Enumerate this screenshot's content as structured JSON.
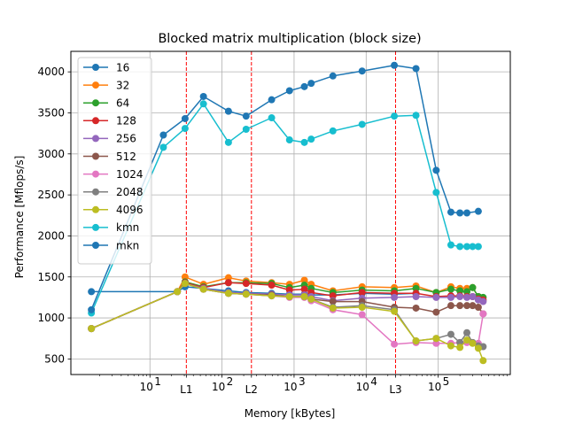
{
  "chart_data": {
    "type": "line",
    "title": "Blocked matrix multiplication (block size)",
    "xlabel": "Memory [kBytes]",
    "ylabel": "Performance [Mflops/s]",
    "xscale": "log",
    "xlim": [
      0.8,
      1000000
    ],
    "ylim": [
      310,
      4250
    ],
    "grid": true,
    "legend_position": "top-left",
    "y_ticks": [
      500,
      1000,
      1500,
      2000,
      2500,
      3000,
      3500,
      4000
    ],
    "x_ticks": [
      {
        "value": 10,
        "label": "10",
        "sup": "1"
      },
      {
        "value": 100,
        "label": "10",
        "sup": "2"
      },
      {
        "value": 1000,
        "label": "10",
        "sup": "3"
      },
      {
        "value": 10000,
        "label": "10",
        "sup": "4"
      },
      {
        "value": 100000,
        "label": "10",
        "sup": "5"
      }
    ],
    "cache_lines": [
      {
        "label": "L1",
        "value": 32
      },
      {
        "label": "L2",
        "value": 256
      },
      {
        "label": "L3",
        "value": 25600
      }
    ],
    "series": [
      {
        "name": "16",
        "color": "#1f77b4",
        "x": [
          1.54,
          24,
          30.72,
          55.3,
          122.9,
          216,
          488,
          864,
          1389,
          1728,
          3456,
          8784,
          24576,
          49152
        ],
        "y": [
          1320,
          1320,
          1380,
          1360,
          1330,
          1310,
          1300,
          1290,
          1290,
          1280,
          1280,
          1300,
          1290,
          1300
        ]
      },
      {
        "name": "32",
        "color": "#ff7f0e",
        "x": [
          1.54,
          24,
          30.72,
          55.3,
          122.9,
          216,
          488,
          864,
          1389,
          1728,
          3456,
          8784,
          24576,
          49152,
          93750,
          150000,
          200000,
          250000,
          300000,
          360000
        ],
        "y": [
          870,
          1320,
          1500,
          1410,
          1490,
          1450,
          1430,
          1410,
          1460,
          1410,
          1330,
          1380,
          1370,
          1390,
          1310,
          1380,
          1360,
          1360,
          1370,
          1260
        ]
      },
      {
        "name": "64",
        "color": "#2ca02c",
        "x": [
          1.54,
          24,
          30.72,
          55.3,
          122.9,
          216,
          488,
          864,
          1389,
          1728,
          3456,
          8784,
          24576,
          49152,
          93750,
          150000,
          200000,
          250000,
          300000,
          360000,
          420000
        ],
        "y": [
          870,
          1320,
          1440,
          1380,
          1430,
          1430,
          1420,
          1370,
          1400,
          1360,
          1310,
          1340,
          1330,
          1360,
          1310,
          1350,
          1330,
          1320,
          1370,
          1260,
          1250
        ]
      },
      {
        "name": "128",
        "color": "#d62728",
        "x": [
          1.54,
          24,
          30.72,
          55.3,
          122.9,
          216,
          488,
          864,
          1389,
          1728,
          3456,
          8784,
          24576,
          49152,
          93750,
          150000,
          200000,
          250000,
          300000,
          360000,
          420000
        ],
        "y": [
          870,
          1320,
          1430,
          1370,
          1430,
          1420,
          1400,
          1340,
          1350,
          1310,
          1270,
          1310,
          1300,
          1300,
          1260,
          1270,
          1270,
          1260,
          1260,
          1230,
          1220
        ]
      },
      {
        "name": "256",
        "color": "#9467bd",
        "x": [
          1.54,
          24,
          30.72,
          55.3,
          122.9,
          216,
          488,
          864,
          1389,
          1728,
          3456,
          8784,
          24576,
          49152,
          93750,
          150000,
          200000,
          250000,
          300000,
          360000,
          420000
        ],
        "y": [
          870,
          1320,
          1420,
          1360,
          1310,
          1300,
          1290,
          1280,
          1280,
          1260,
          1210,
          1240,
          1250,
          1260,
          1250,
          1250,
          1260,
          1250,
          1260,
          1220,
          1200
        ]
      },
      {
        "name": "512",
        "color": "#8c564b",
        "x": [
          1.54,
          24,
          30.72,
          55.3,
          122.9,
          216,
          488,
          864,
          1389,
          1728,
          3456,
          8784,
          24576,
          49152,
          93750,
          150000,
          200000,
          250000,
          300000,
          360000,
          420000
        ],
        "y": [
          870,
          1320,
          1420,
          1350,
          1300,
          1290,
          1280,
          1260,
          1260,
          1230,
          1200,
          1200,
          1130,
          1120,
          1070,
          1150,
          1150,
          1150,
          1150,
          1130,
          1050
        ]
      },
      {
        "name": "1024",
        "color": "#e377c2",
        "x": [
          1.54,
          24,
          30.72,
          55.3,
          122.9,
          216,
          488,
          864,
          1389,
          1728,
          3456,
          8784,
          24576,
          49152,
          93750,
          150000,
          200000,
          250000,
          300000,
          360000,
          420000
        ],
        "y": [
          870,
          1320,
          1420,
          1350,
          1300,
          1290,
          1270,
          1250,
          1250,
          1210,
          1100,
          1040,
          680,
          700,
          690,
          690,
          700,
          700,
          700,
          690,
          1050
        ]
      },
      {
        "name": "2048",
        "color": "#7f7f7f",
        "x": [
          1.54,
          24,
          30.72,
          55.3,
          122.9,
          216,
          488,
          864,
          1389,
          1728,
          3456,
          8784,
          24576,
          49152,
          93750,
          150000,
          200000,
          250000,
          300000,
          360000,
          420000
        ],
        "y": [
          870,
          1320,
          1420,
          1350,
          1300,
          1290,
          1270,
          1260,
          1260,
          1230,
          1130,
          1150,
          1100,
          720,
          750,
          800,
          700,
          820,
          700,
          660,
          650
        ]
      },
      {
        "name": "4096",
        "color": "#bcbd22",
        "x": [
          1.54,
          24,
          30.72,
          55.3,
          122.9,
          216,
          488,
          864,
          1389,
          1728,
          3456,
          8784,
          24576,
          49152,
          93750,
          150000,
          200000,
          250000,
          300000,
          360000,
          420000
        ],
        "y": [
          870,
          1320,
          1420,
          1350,
          1300,
          1290,
          1270,
          1260,
          1260,
          1230,
          1120,
          1130,
          1080,
          720,
          750,
          660,
          640,
          730,
          690,
          630,
          480
        ]
      },
      {
        "name": "kmn",
        "color": "#17becf",
        "x": [
          1.54,
          15.36,
          30.72,
          55.3,
          122.9,
          216,
          488,
          864,
          1389,
          1728,
          3456,
          8784,
          24576,
          49152,
          93750,
          150000,
          200000,
          250000,
          300000,
          360000
        ],
        "y": [
          1060,
          3080,
          3310,
          3610,
          3140,
          3300,
          3440,
          3170,
          3140,
          3180,
          3280,
          3360,
          3460,
          3470,
          2530,
          1890,
          1870,
          1870,
          1870,
          1870
        ]
      },
      {
        "name": "mkn",
        "color": "#1f77b4",
        "x": [
          1.54,
          15.36,
          30.72,
          55.3,
          122.9,
          216,
          488,
          864,
          1389,
          1728,
          3456,
          8784,
          24576,
          49152,
          93750,
          150000,
          200000,
          250000,
          360000
        ],
        "y": [
          1100,
          3230,
          3430,
          3700,
          3520,
          3460,
          3660,
          3770,
          3820,
          3860,
          3950,
          4010,
          4080,
          4040,
          2800,
          2290,
          2280,
          2280,
          2300
        ]
      }
    ]
  }
}
